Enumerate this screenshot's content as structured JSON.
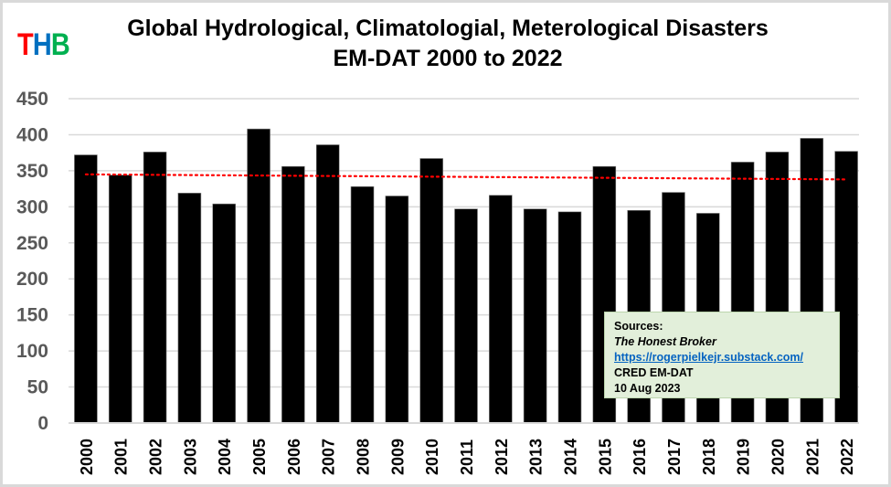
{
  "logo": {
    "letters": [
      {
        "char": "T",
        "color": "#ff0000"
      },
      {
        "char": "H",
        "color": "#0070c0"
      },
      {
        "char": "B",
        "color": "#00b050"
      }
    ]
  },
  "chart_data": {
    "type": "bar",
    "title": "Global Hydrological, Climatologial, Meterological Disasters",
    "subtitle": "EM-DAT 2000 to 2022",
    "xlabel": "",
    "ylabel": "",
    "ylim": [
      0,
      450
    ],
    "yticks": [
      0,
      50,
      100,
      150,
      200,
      250,
      300,
      350,
      400,
      450
    ],
    "grid": true,
    "categories": [
      "2000",
      "2001",
      "2002",
      "2003",
      "2004",
      "2005",
      "2006",
      "2007",
      "2008",
      "2009",
      "2010",
      "2011",
      "2012",
      "2013",
      "2014",
      "2015",
      "2016",
      "2017",
      "2018",
      "2019",
      "2020",
      "2021",
      "2022"
    ],
    "values": [
      372,
      344,
      376,
      319,
      304,
      408,
      356,
      386,
      328,
      315,
      367,
      297,
      316,
      297,
      293,
      356,
      295,
      320,
      291,
      362,
      376,
      395,
      377
    ],
    "bar_color": "#000000",
    "trendline": {
      "type": "linear",
      "start": 345,
      "end": 338,
      "color": "#ff0000",
      "style": "dotted"
    }
  },
  "sources": {
    "heading": "Sources:",
    "publication": "The Honest Broker",
    "url": "https://rogerpielkejr.substack.com/",
    "dataset": "CRED EM-DAT",
    "date": "10 Aug 2023"
  }
}
